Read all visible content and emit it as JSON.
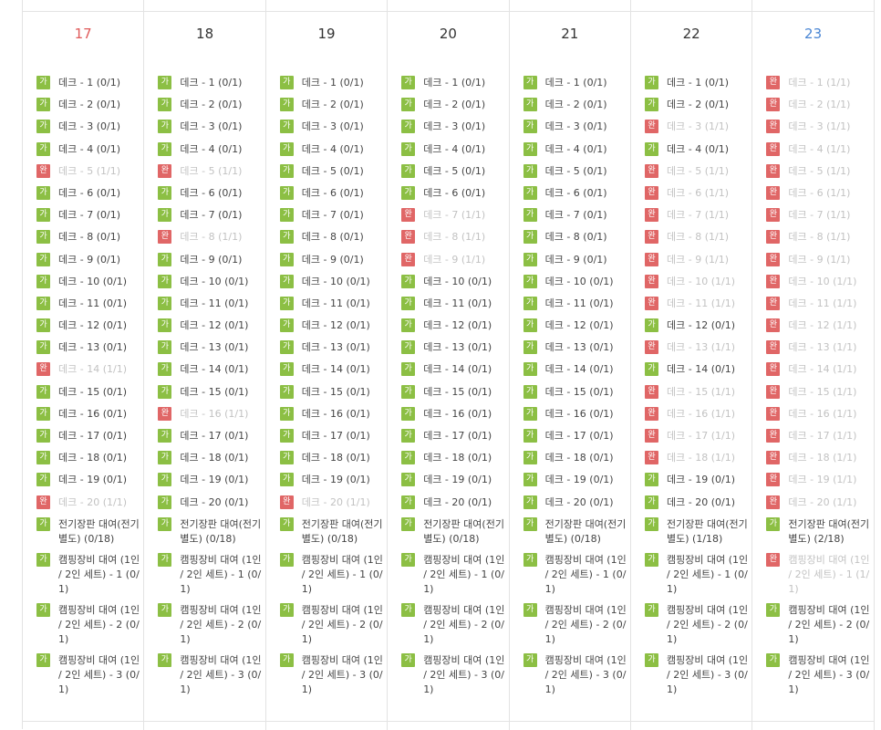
{
  "calendar": {
    "status_labels": {
      "available": "가",
      "done": "완"
    },
    "days": [
      {
        "date": "17",
        "weekday": "sun",
        "items": [
          {
            "label": "데크 - 1 (0/1)",
            "status": "available"
          },
          {
            "label": "데크 - 2 (0/1)",
            "status": "available"
          },
          {
            "label": "데크 - 3 (0/1)",
            "status": "available"
          },
          {
            "label": "데크 - 4 (0/1)",
            "status": "available"
          },
          {
            "label": "데크 - 5 (1/1)",
            "status": "done"
          },
          {
            "label": "데크 - 6 (0/1)",
            "status": "available"
          },
          {
            "label": "데크 - 7 (0/1)",
            "status": "available"
          },
          {
            "label": "데크 - 8 (0/1)",
            "status": "available"
          },
          {
            "label": "데크 - 9 (0/1)",
            "status": "available"
          },
          {
            "label": "데크 - 10 (0/1)",
            "status": "available"
          },
          {
            "label": "데크 - 11 (0/1)",
            "status": "available"
          },
          {
            "label": "데크 - 12 (0/1)",
            "status": "available"
          },
          {
            "label": "데크 - 13 (0/1)",
            "status": "available"
          },
          {
            "label": "데크 - 14 (1/1)",
            "status": "done"
          },
          {
            "label": "데크 - 15 (0/1)",
            "status": "available"
          },
          {
            "label": "데크 - 16 (0/1)",
            "status": "available"
          },
          {
            "label": "데크 - 17 (0/1)",
            "status": "available"
          },
          {
            "label": "데크 - 18 (0/1)",
            "status": "available"
          },
          {
            "label": "데크 - 19 (0/1)",
            "status": "available"
          },
          {
            "label": "데크 - 20 (1/1)",
            "status": "done"
          },
          {
            "label": "전기장판 대여(전기 별도) (0/18)",
            "status": "available"
          },
          {
            "label": "캠핑장비 대여 (1인 / 2인 세트) - 1 (0/1)",
            "status": "available"
          },
          {
            "label": "캠핑장비 대여 (1인 / 2인 세트) - 2 (0/1)",
            "status": "available"
          },
          {
            "label": "캠핑장비 대여 (1인 / 2인 세트) - 3 (0/1)",
            "status": "available"
          }
        ]
      },
      {
        "date": "18",
        "weekday": "mon",
        "items": [
          {
            "label": "데크 - 1 (0/1)",
            "status": "available"
          },
          {
            "label": "데크 - 2 (0/1)",
            "status": "available"
          },
          {
            "label": "데크 - 3 (0/1)",
            "status": "available"
          },
          {
            "label": "데크 - 4 (0/1)",
            "status": "available"
          },
          {
            "label": "데크 - 5 (1/1)",
            "status": "done"
          },
          {
            "label": "데크 - 6 (0/1)",
            "status": "available"
          },
          {
            "label": "데크 - 7 (0/1)",
            "status": "available"
          },
          {
            "label": "데크 - 8 (1/1)",
            "status": "done"
          },
          {
            "label": "데크 - 9 (0/1)",
            "status": "available"
          },
          {
            "label": "데크 - 10 (0/1)",
            "status": "available"
          },
          {
            "label": "데크 - 11 (0/1)",
            "status": "available"
          },
          {
            "label": "데크 - 12 (0/1)",
            "status": "available"
          },
          {
            "label": "데크 - 13 (0/1)",
            "status": "available"
          },
          {
            "label": "데크 - 14 (0/1)",
            "status": "available"
          },
          {
            "label": "데크 - 15 (0/1)",
            "status": "available"
          },
          {
            "label": "데크 - 16 (1/1)",
            "status": "done"
          },
          {
            "label": "데크 - 17 (0/1)",
            "status": "available"
          },
          {
            "label": "데크 - 18 (0/1)",
            "status": "available"
          },
          {
            "label": "데크 - 19 (0/1)",
            "status": "available"
          },
          {
            "label": "데크 - 20 (0/1)",
            "status": "available"
          },
          {
            "label": "전기장판 대여(전기 별도) (0/18)",
            "status": "available"
          },
          {
            "label": "캠핑장비 대여 (1인 / 2인 세트) - 1 (0/1)",
            "status": "available"
          },
          {
            "label": "캠핑장비 대여 (1인 / 2인 세트) - 2 (0/1)",
            "status": "available"
          },
          {
            "label": "캠핑장비 대여 (1인 / 2인 세트) - 3 (0/1)",
            "status": "available"
          }
        ]
      },
      {
        "date": "19",
        "weekday": "tue",
        "items": [
          {
            "label": "데크 - 1 (0/1)",
            "status": "available"
          },
          {
            "label": "데크 - 2 (0/1)",
            "status": "available"
          },
          {
            "label": "데크 - 3 (0/1)",
            "status": "available"
          },
          {
            "label": "데크 - 4 (0/1)",
            "status": "available"
          },
          {
            "label": "데크 - 5 (0/1)",
            "status": "available"
          },
          {
            "label": "데크 - 6 (0/1)",
            "status": "available"
          },
          {
            "label": "데크 - 7 (0/1)",
            "status": "available"
          },
          {
            "label": "데크 - 8 (0/1)",
            "status": "available"
          },
          {
            "label": "데크 - 9 (0/1)",
            "status": "available"
          },
          {
            "label": "데크 - 10 (0/1)",
            "status": "available"
          },
          {
            "label": "데크 - 11 (0/1)",
            "status": "available"
          },
          {
            "label": "데크 - 12 (0/1)",
            "status": "available"
          },
          {
            "label": "데크 - 13 (0/1)",
            "status": "available"
          },
          {
            "label": "데크 - 14 (0/1)",
            "status": "available"
          },
          {
            "label": "데크 - 15 (0/1)",
            "status": "available"
          },
          {
            "label": "데크 - 16 (0/1)",
            "status": "available"
          },
          {
            "label": "데크 - 17 (0/1)",
            "status": "available"
          },
          {
            "label": "데크 - 18 (0/1)",
            "status": "available"
          },
          {
            "label": "데크 - 19 (0/1)",
            "status": "available"
          },
          {
            "label": "데크 - 20 (1/1)",
            "status": "done"
          },
          {
            "label": "전기장판 대여(전기 별도) (0/18)",
            "status": "available"
          },
          {
            "label": "캠핑장비 대여 (1인 / 2인 세트) - 1 (0/1)",
            "status": "available"
          },
          {
            "label": "캠핑장비 대여 (1인 / 2인 세트) - 2 (0/1)",
            "status": "available"
          },
          {
            "label": "캠핑장비 대여 (1인 / 2인 세트) - 3 (0/1)",
            "status": "available"
          }
        ]
      },
      {
        "date": "20",
        "weekday": "wed",
        "items": [
          {
            "label": "데크 - 1 (0/1)",
            "status": "available"
          },
          {
            "label": "데크 - 2 (0/1)",
            "status": "available"
          },
          {
            "label": "데크 - 3 (0/1)",
            "status": "available"
          },
          {
            "label": "데크 - 4 (0/1)",
            "status": "available"
          },
          {
            "label": "데크 - 5 (0/1)",
            "status": "available"
          },
          {
            "label": "데크 - 6 (0/1)",
            "status": "available"
          },
          {
            "label": "데크 - 7 (1/1)",
            "status": "done"
          },
          {
            "label": "데크 - 8 (1/1)",
            "status": "done"
          },
          {
            "label": "데크 - 9 (1/1)",
            "status": "done"
          },
          {
            "label": "데크 - 10 (0/1)",
            "status": "available"
          },
          {
            "label": "데크 - 11 (0/1)",
            "status": "available"
          },
          {
            "label": "데크 - 12 (0/1)",
            "status": "available"
          },
          {
            "label": "데크 - 13 (0/1)",
            "status": "available"
          },
          {
            "label": "데크 - 14 (0/1)",
            "status": "available"
          },
          {
            "label": "데크 - 15 (0/1)",
            "status": "available"
          },
          {
            "label": "데크 - 16 (0/1)",
            "status": "available"
          },
          {
            "label": "데크 - 17 (0/1)",
            "status": "available"
          },
          {
            "label": "데크 - 18 (0/1)",
            "status": "available"
          },
          {
            "label": "데크 - 19 (0/1)",
            "status": "available"
          },
          {
            "label": "데크 - 20 (0/1)",
            "status": "available"
          },
          {
            "label": "전기장판 대여(전기 별도) (0/18)",
            "status": "available"
          },
          {
            "label": "캠핑장비 대여 (1인 / 2인 세트) - 1 (0/1)",
            "status": "available"
          },
          {
            "label": "캠핑장비 대여 (1인 / 2인 세트) - 2 (0/1)",
            "status": "available"
          },
          {
            "label": "캠핑장비 대여 (1인 / 2인 세트) - 3 (0/1)",
            "status": "available"
          }
        ]
      },
      {
        "date": "21",
        "weekday": "thu",
        "items": [
          {
            "label": "데크 - 1 (0/1)",
            "status": "available"
          },
          {
            "label": "데크 - 2 (0/1)",
            "status": "available"
          },
          {
            "label": "데크 - 3 (0/1)",
            "status": "available"
          },
          {
            "label": "데크 - 4 (0/1)",
            "status": "available"
          },
          {
            "label": "데크 - 5 (0/1)",
            "status": "available"
          },
          {
            "label": "데크 - 6 (0/1)",
            "status": "available"
          },
          {
            "label": "데크 - 7 (0/1)",
            "status": "available"
          },
          {
            "label": "데크 - 8 (0/1)",
            "status": "available"
          },
          {
            "label": "데크 - 9 (0/1)",
            "status": "available"
          },
          {
            "label": "데크 - 10 (0/1)",
            "status": "available"
          },
          {
            "label": "데크 - 11 (0/1)",
            "status": "available"
          },
          {
            "label": "데크 - 12 (0/1)",
            "status": "available"
          },
          {
            "label": "데크 - 13 (0/1)",
            "status": "available"
          },
          {
            "label": "데크 - 14 (0/1)",
            "status": "available"
          },
          {
            "label": "데크 - 15 (0/1)",
            "status": "available"
          },
          {
            "label": "데크 - 16 (0/1)",
            "status": "available"
          },
          {
            "label": "데크 - 17 (0/1)",
            "status": "available"
          },
          {
            "label": "데크 - 18 (0/1)",
            "status": "available"
          },
          {
            "label": "데크 - 19 (0/1)",
            "status": "available"
          },
          {
            "label": "데크 - 20 (0/1)",
            "status": "available"
          },
          {
            "label": "전기장판 대여(전기 별도) (0/18)",
            "status": "available"
          },
          {
            "label": "캠핑장비 대여 (1인 / 2인 세트) - 1 (0/1)",
            "status": "available"
          },
          {
            "label": "캠핑장비 대여 (1인 / 2인 세트) - 2 (0/1)",
            "status": "available"
          },
          {
            "label": "캠핑장비 대여 (1인 / 2인 세트) - 3 (0/1)",
            "status": "available"
          }
        ]
      },
      {
        "date": "22",
        "weekday": "fri",
        "items": [
          {
            "label": "데크 - 1 (0/1)",
            "status": "available"
          },
          {
            "label": "데크 - 2 (0/1)",
            "status": "available"
          },
          {
            "label": "데크 - 3 (1/1)",
            "status": "done"
          },
          {
            "label": "데크 - 4 (0/1)",
            "status": "available"
          },
          {
            "label": "데크 - 5 (1/1)",
            "status": "done"
          },
          {
            "label": "데크 - 6 (1/1)",
            "status": "done"
          },
          {
            "label": "데크 - 7 (1/1)",
            "status": "done"
          },
          {
            "label": "데크 - 8 (1/1)",
            "status": "done"
          },
          {
            "label": "데크 - 9 (1/1)",
            "status": "done"
          },
          {
            "label": "데크 - 10 (1/1)",
            "status": "done"
          },
          {
            "label": "데크 - 11 (1/1)",
            "status": "done"
          },
          {
            "label": "데크 - 12 (0/1)",
            "status": "available"
          },
          {
            "label": "데크 - 13 (1/1)",
            "status": "done"
          },
          {
            "label": "데크 - 14 (0/1)",
            "status": "available"
          },
          {
            "label": "데크 - 15 (1/1)",
            "status": "done"
          },
          {
            "label": "데크 - 16 (1/1)",
            "status": "done"
          },
          {
            "label": "데크 - 17 (1/1)",
            "status": "done"
          },
          {
            "label": "데크 - 18 (1/1)",
            "status": "done"
          },
          {
            "label": "데크 - 19 (0/1)",
            "status": "available"
          },
          {
            "label": "데크 - 20 (0/1)",
            "status": "available"
          },
          {
            "label": "전기장판 대여(전기 별도) (1/18)",
            "status": "available"
          },
          {
            "label": "캠핑장비 대여 (1인 / 2인 세트) - 1 (0/1)",
            "status": "available"
          },
          {
            "label": "캠핑장비 대여 (1인 / 2인 세트) - 2 (0/1)",
            "status": "available"
          },
          {
            "label": "캠핑장비 대여 (1인 / 2인 세트) - 3 (0/1)",
            "status": "available"
          }
        ]
      },
      {
        "date": "23",
        "weekday": "sat",
        "items": [
          {
            "label": "데크 - 1 (1/1)",
            "status": "done"
          },
          {
            "label": "데크 - 2 (1/1)",
            "status": "done"
          },
          {
            "label": "데크 - 3 (1/1)",
            "status": "done"
          },
          {
            "label": "데크 - 4 (1/1)",
            "status": "done"
          },
          {
            "label": "데크 - 5 (1/1)",
            "status": "done"
          },
          {
            "label": "데크 - 6 (1/1)",
            "status": "done"
          },
          {
            "label": "데크 - 7 (1/1)",
            "status": "done"
          },
          {
            "label": "데크 - 8 (1/1)",
            "status": "done"
          },
          {
            "label": "데크 - 9 (1/1)",
            "status": "done"
          },
          {
            "label": "데크 - 10 (1/1)",
            "status": "done"
          },
          {
            "label": "데크 - 11 (1/1)",
            "status": "done"
          },
          {
            "label": "데크 - 12 (1/1)",
            "status": "done"
          },
          {
            "label": "데크 - 13 (1/1)",
            "status": "done"
          },
          {
            "label": "데크 - 14 (1/1)",
            "status": "done"
          },
          {
            "label": "데크 - 15 (1/1)",
            "status": "done"
          },
          {
            "label": "데크 - 16 (1/1)",
            "status": "done"
          },
          {
            "label": "데크 - 17 (1/1)",
            "status": "done"
          },
          {
            "label": "데크 - 18 (1/1)",
            "status": "done"
          },
          {
            "label": "데크 - 19 (1/1)",
            "status": "done"
          },
          {
            "label": "데크 - 20 (1/1)",
            "status": "done"
          },
          {
            "label": "전기장판 대여(전기 별도) (2/18)",
            "status": "available"
          },
          {
            "label": "캠핑장비 대여 (1인 / 2인 세트) - 1 (1/1)",
            "status": "done"
          },
          {
            "label": "캠핑장비 대여 (1인 / 2인 세트) - 2 (0/1)",
            "status": "available"
          },
          {
            "label": "캠핑장비 대여 (1인 / 2인 세트) - 3 (0/1)",
            "status": "available"
          }
        ]
      }
    ]
  },
  "colors": {
    "available_badge": "#8cbf44",
    "done_badge": "#e06666",
    "sunday": "#e05a5a",
    "saturday": "#4a86d4",
    "done_text": "#c2c2c2",
    "grid_line": "#e3e3e3"
  }
}
